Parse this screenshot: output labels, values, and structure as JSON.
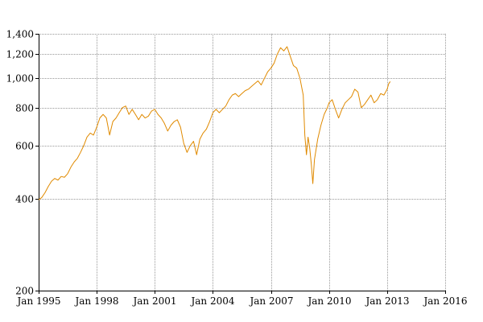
{
  "chart_data": {
    "type": "line",
    "title": "",
    "xlabel": "",
    "ylabel": "",
    "y_scale": "log",
    "xlim": [
      "1995-01-01",
      "2016-01-01"
    ],
    "ylim": [
      200,
      1400
    ],
    "grid": true,
    "legend": "none",
    "colors": {
      "series": "#E08A00",
      "grid": "#999999",
      "axis": "#000000"
    },
    "x_ticks": [
      {
        "date": "1995-01-01",
        "label": "Jan 1995"
      },
      {
        "date": "1998-01-01",
        "label": "Jan 1998"
      },
      {
        "date": "2001-01-01",
        "label": "Jan 2001"
      },
      {
        "date": "2004-01-01",
        "label": "Jan 2004"
      },
      {
        "date": "2007-01-01",
        "label": "Jan 2007"
      },
      {
        "date": "2010-01-01",
        "label": "Jan 2010"
      },
      {
        "date": "2013-01-01",
        "label": "Jan 2013"
      },
      {
        "date": "2016-01-01",
        "label": "Jan 2016"
      }
    ],
    "y_ticks": [
      {
        "value": 200,
        "label": "200"
      },
      {
        "value": 400,
        "label": "400"
      },
      {
        "value": 600,
        "label": "600"
      },
      {
        "value": 800,
        "label": "800"
      },
      {
        "value": 1000,
        "label": "1,000"
      },
      {
        "value": 1200,
        "label": "1,200"
      },
      {
        "value": 1400,
        "label": "1,400"
      }
    ],
    "series": [
      {
        "points": [
          [
            "1995-01-01",
            398
          ],
          [
            "1995-03-01",
            405
          ],
          [
            "1995-05-01",
            420
          ],
          [
            "1995-07-01",
            440
          ],
          [
            "1995-09-01",
            458
          ],
          [
            "1995-11-01",
            468
          ],
          [
            "1996-01-01",
            462
          ],
          [
            "1996-03-01",
            475
          ],
          [
            "1996-05-01",
            472
          ],
          [
            "1996-07-01",
            485
          ],
          [
            "1996-09-01",
            510
          ],
          [
            "1996-11-01",
            530
          ],
          [
            "1997-01-01",
            545
          ],
          [
            "1997-03-01",
            570
          ],
          [
            "1997-05-01",
            600
          ],
          [
            "1997-07-01",
            640
          ],
          [
            "1997-09-01",
            660
          ],
          [
            "1997-11-01",
            650
          ],
          [
            "1998-01-01",
            690
          ],
          [
            "1998-03-01",
            740
          ],
          [
            "1998-05-01",
            760
          ],
          [
            "1998-07-01",
            740
          ],
          [
            "1998-09-01",
            650
          ],
          [
            "1998-11-01",
            720
          ],
          [
            "1999-01-01",
            740
          ],
          [
            "1999-03-01",
            770
          ],
          [
            "1999-05-01",
            800
          ],
          [
            "1999-07-01",
            810
          ],
          [
            "1999-09-01",
            760
          ],
          [
            "1999-11-01",
            790
          ],
          [
            "2000-01-01",
            760
          ],
          [
            "2000-03-01",
            730
          ],
          [
            "2000-05-01",
            760
          ],
          [
            "2000-07-01",
            740
          ],
          [
            "2000-09-01",
            750
          ],
          [
            "2000-11-01",
            780
          ],
          [
            "2001-01-01",
            790
          ],
          [
            "2001-03-01",
            760
          ],
          [
            "2001-05-01",
            740
          ],
          [
            "2001-07-01",
            710
          ],
          [
            "2001-09-01",
            670
          ],
          [
            "2001-11-01",
            700
          ],
          [
            "2002-01-01",
            720
          ],
          [
            "2002-03-01",
            730
          ],
          [
            "2002-05-01",
            690
          ],
          [
            "2002-07-01",
            610
          ],
          [
            "2002-09-01",
            570
          ],
          [
            "2002-11-01",
            600
          ],
          [
            "2003-01-01",
            620
          ],
          [
            "2003-03-01",
            560
          ],
          [
            "2003-05-01",
            630
          ],
          [
            "2003-07-01",
            660
          ],
          [
            "2003-09-01",
            680
          ],
          [
            "2003-11-01",
            720
          ],
          [
            "2004-01-01",
            770
          ],
          [
            "2004-03-01",
            790
          ],
          [
            "2004-05-01",
            770
          ],
          [
            "2004-07-01",
            790
          ],
          [
            "2004-09-01",
            810
          ],
          [
            "2004-11-01",
            850
          ],
          [
            "2005-01-01",
            880
          ],
          [
            "2005-03-01",
            890
          ],
          [
            "2005-05-01",
            870
          ],
          [
            "2005-07-01",
            890
          ],
          [
            "2005-09-01",
            910
          ],
          [
            "2005-11-01",
            920
          ],
          [
            "2006-01-01",
            940
          ],
          [
            "2006-03-01",
            960
          ],
          [
            "2006-05-01",
            980
          ],
          [
            "2006-07-01",
            950
          ],
          [
            "2006-09-01",
            1000
          ],
          [
            "2006-11-01",
            1050
          ],
          [
            "2007-01-01",
            1080
          ],
          [
            "2007-03-01",
            1120
          ],
          [
            "2007-05-01",
            1200
          ],
          [
            "2007-07-01",
            1260
          ],
          [
            "2007-09-01",
            1230
          ],
          [
            "2007-11-01",
            1270
          ],
          [
            "2008-01-01",
            1180
          ],
          [
            "2008-03-01",
            1100
          ],
          [
            "2008-05-01",
            1080
          ],
          [
            "2008-07-01",
            1000
          ],
          [
            "2008-09-01",
            880
          ],
          [
            "2008-10-01",
            650
          ],
          [
            "2008-11-01",
            560
          ],
          [
            "2008-12-01",
            640
          ],
          [
            "2009-01-01",
            590
          ],
          [
            "2009-02-01",
            520
          ],
          [
            "2009-03-01",
            450
          ],
          [
            "2009-04-01",
            540
          ],
          [
            "2009-06-01",
            630
          ],
          [
            "2009-08-01",
            700
          ],
          [
            "2009-10-01",
            760
          ],
          [
            "2009-12-01",
            800
          ],
          [
            "2010-01-01",
            830
          ],
          [
            "2010-03-01",
            850
          ],
          [
            "2010-05-01",
            790
          ],
          [
            "2010-07-01",
            740
          ],
          [
            "2010-09-01",
            790
          ],
          [
            "2010-11-01",
            830
          ],
          [
            "2011-01-01",
            850
          ],
          [
            "2011-03-01",
            870
          ],
          [
            "2011-05-01",
            920
          ],
          [
            "2011-07-01",
            900
          ],
          [
            "2011-09-01",
            800
          ],
          [
            "2011-11-01",
            820
          ],
          [
            "2012-01-01",
            850
          ],
          [
            "2012-03-01",
            880
          ],
          [
            "2012-05-01",
            830
          ],
          [
            "2012-07-01",
            850
          ],
          [
            "2012-09-01",
            890
          ],
          [
            "2012-11-01",
            880
          ],
          [
            "2013-01-01",
            920
          ],
          [
            "2013-02-01",
            960
          ],
          [
            "2013-03-01",
            975
          ]
        ]
      }
    ]
  }
}
